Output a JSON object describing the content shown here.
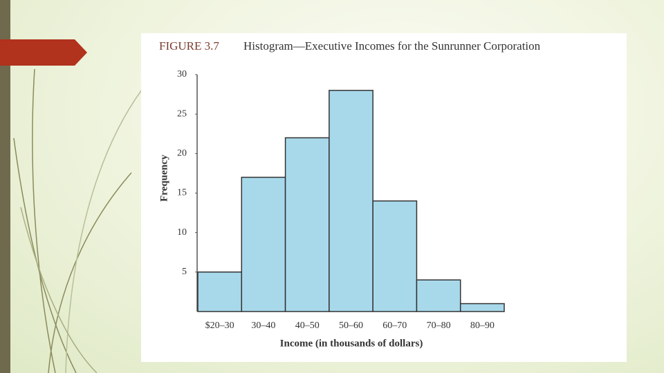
{
  "chart_data": {
    "type": "histogram",
    "figure_label": "FIGURE 3.7",
    "title": "Histogram—Executive Incomes for the Sunrunner Corporation",
    "xlabel": "Income (in thousands of dollars)",
    "ylabel": "Frequency",
    "categories": [
      "$20–30",
      "30–40",
      "40–50",
      "50–60",
      "60–70",
      "70–80",
      "80–90"
    ],
    "values": [
      5,
      17,
      22,
      28,
      14,
      4,
      1
    ],
    "color": "#a8d9eb",
    "ylim": [
      0,
      30
    ],
    "yticks": [
      5,
      10,
      15,
      20,
      25,
      30
    ]
  }
}
